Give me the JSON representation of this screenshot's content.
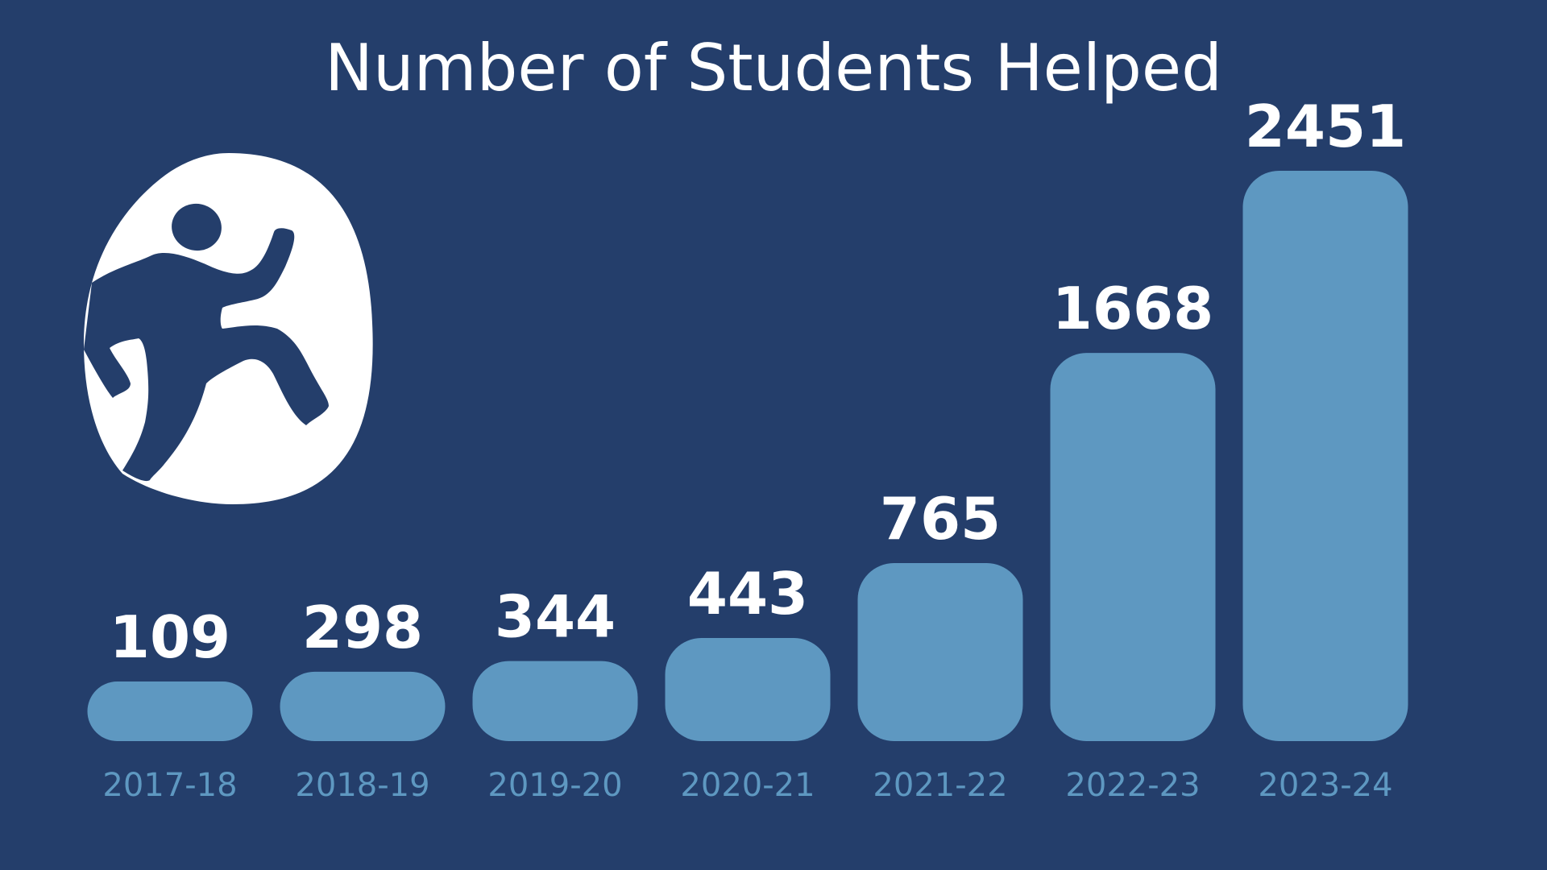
{
  "colors": {
    "background": "#243e6b",
    "bar": "#5e98c1",
    "value_text": "#ffffff",
    "tick_text": "#5e98c1",
    "title_text": "#ffffff",
    "logo_fill": "#ffffff"
  },
  "logo": {
    "icon": "running-student-icon"
  },
  "chart_data": {
    "type": "bar",
    "title": "Number of Students Helped",
    "xlabel": "",
    "ylabel": "",
    "ylim": [
      0,
      2451
    ],
    "grid": false,
    "legend": "none",
    "categories": [
      "2017-18",
      "2018-19",
      "2019-20",
      "2020-21",
      "2021-22",
      "2022-23",
      "2023-24"
    ],
    "values": [
      109,
      298,
      344,
      443,
      765,
      1668,
      2451
    ],
    "value_labels": [
      "109",
      "298",
      "344",
      "443",
      "765",
      "1668",
      "2451"
    ]
  }
}
